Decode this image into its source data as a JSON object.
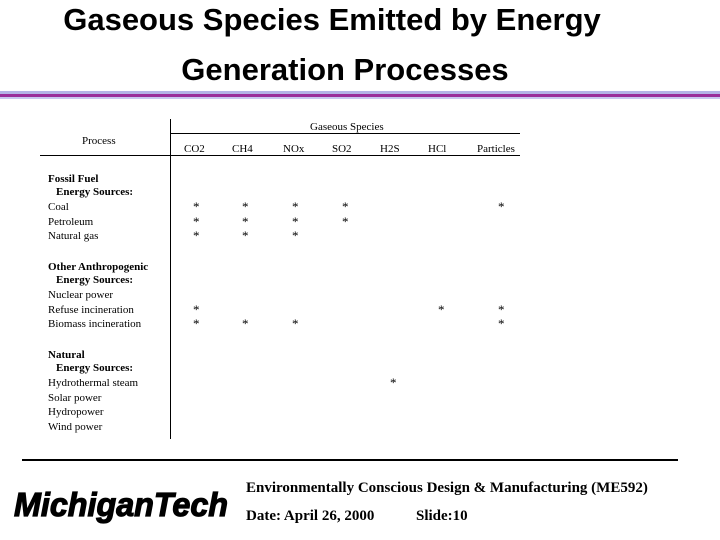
{
  "slide": {
    "title_line1": "Gaseous Species Emitted  by Energy",
    "title_line2": "Generation Processes"
  },
  "table": {
    "process_header": "Process",
    "species_header": "Gaseous Species",
    "columns": [
      "CO2",
      "CH4",
      "NOx",
      "SO2",
      "H2S",
      "HCl",
      "Particles"
    ],
    "groups": [
      {
        "heading": [
          "Fossil Fuel",
          "Energy Sources:"
        ],
        "rows": [
          {
            "label": "Coal",
            "marks": [
              true,
              true,
              true,
              true,
              false,
              false,
              true
            ]
          },
          {
            "label": "Petroleum",
            "marks": [
              true,
              true,
              true,
              true,
              false,
              false,
              false
            ]
          },
          {
            "label": "Natural gas",
            "marks": [
              true,
              true,
              true,
              false,
              false,
              false,
              false
            ]
          }
        ]
      },
      {
        "heading": [
          "Other Anthropogenic",
          "Energy Sources:"
        ],
        "rows": [
          {
            "label": "Nuclear power",
            "marks": [
              false,
              false,
              false,
              false,
              false,
              false,
              false
            ]
          },
          {
            "label": "Refuse incineration",
            "marks": [
              true,
              false,
              false,
              false,
              false,
              true,
              true
            ]
          },
          {
            "label": "Biomass incineration",
            "marks": [
              true,
              true,
              true,
              false,
              false,
              false,
              true
            ]
          }
        ]
      },
      {
        "heading": [
          "Natural",
          "Energy Sources:"
        ],
        "rows": [
          {
            "label": "Hydrothermal steam",
            "marks": [
              false,
              false,
              false,
              false,
              true,
              false,
              false
            ]
          },
          {
            "label": "Solar power",
            "marks": [
              false,
              false,
              false,
              false,
              false,
              false,
              false
            ]
          },
          {
            "label": "Hydropower",
            "marks": [
              false,
              false,
              false,
              false,
              false,
              false,
              false
            ]
          },
          {
            "label": "Wind power",
            "marks": [
              false,
              false,
              false,
              false,
              false,
              false,
              false
            ]
          }
        ]
      }
    ],
    "mark_symbol": "*"
  },
  "footer": {
    "logo_text": "MichiganTech",
    "course": "Environmentally Conscious Design & Manufacturing (ME592)",
    "date": "Date: April 26, 2000",
    "slide": "Slide:10"
  },
  "colors": {
    "band_lavender": "#b4b4e6",
    "band_purple": "#9a2f9a",
    "logo": "#000000"
  }
}
